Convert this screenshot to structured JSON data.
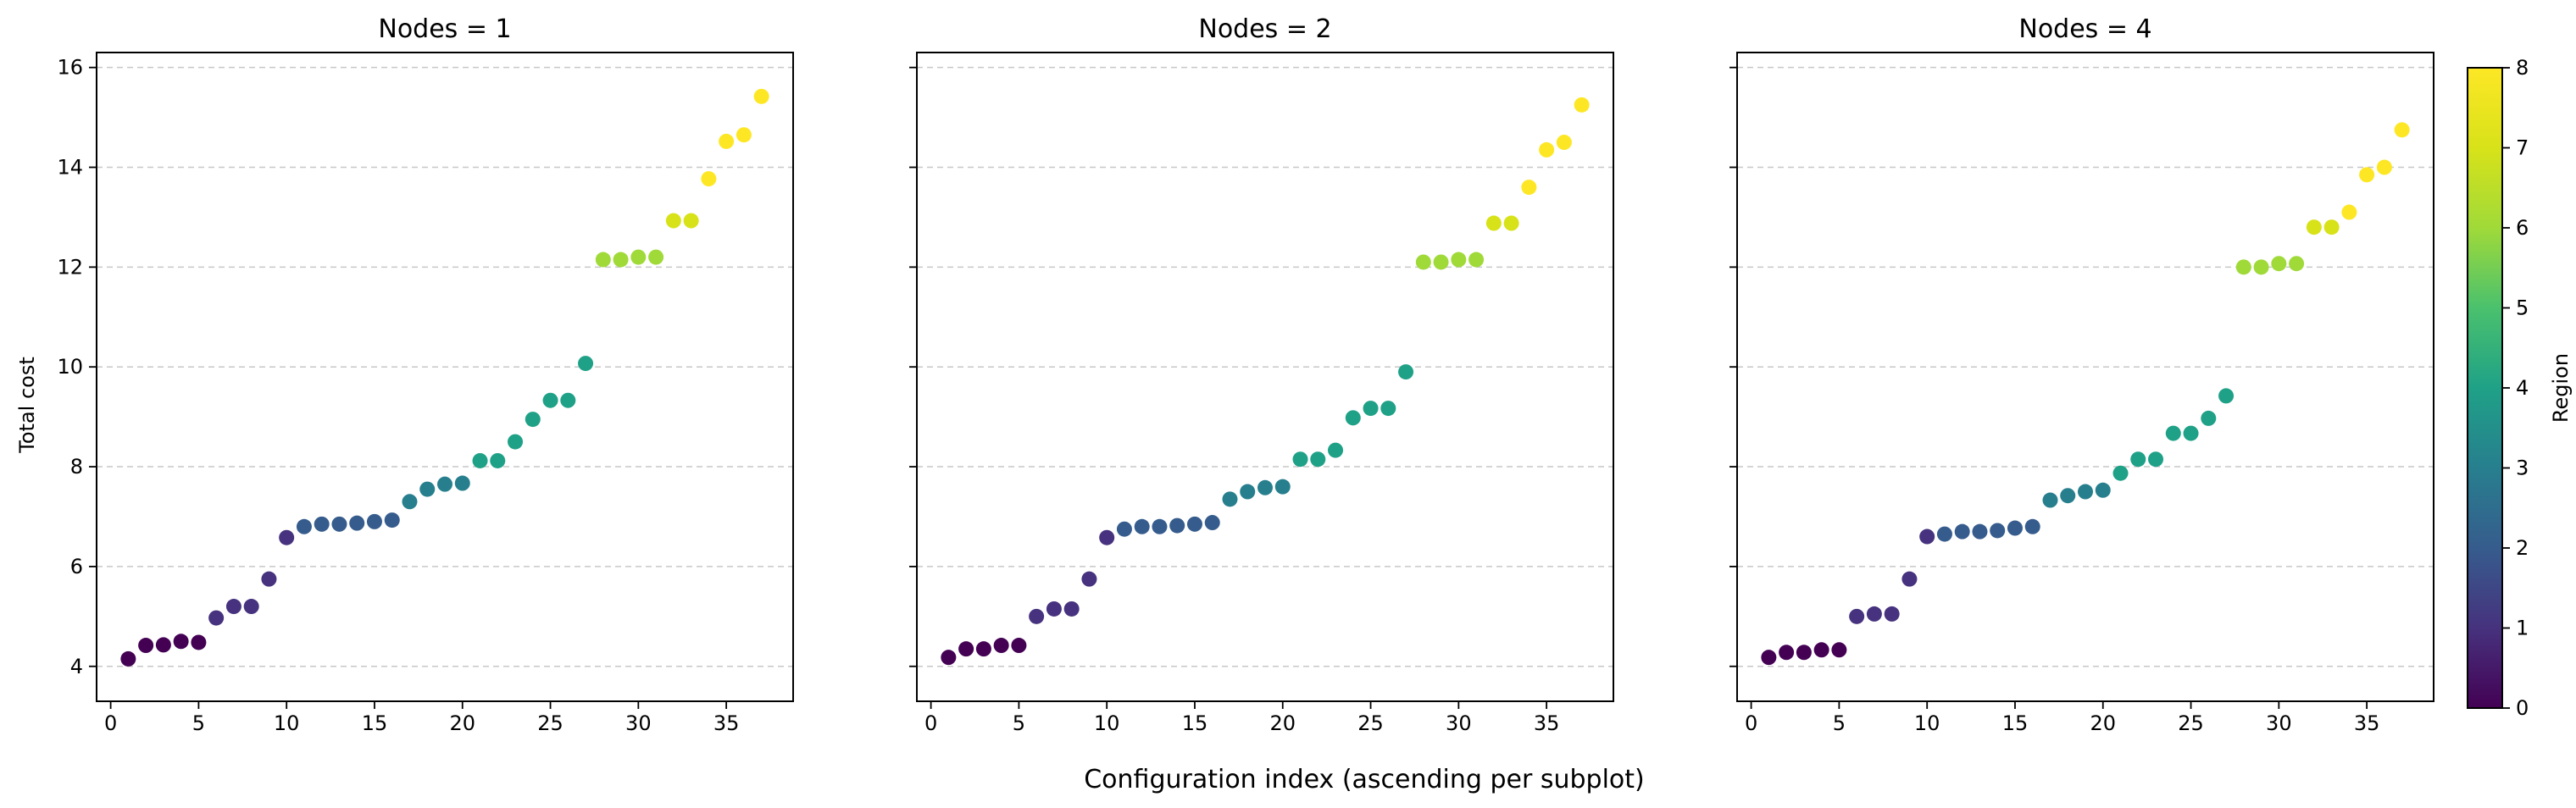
{
  "chart_data": {
    "type": "scatter",
    "xlabel": "Configuration index (ascending per subplot)",
    "ylabel": "Total cost",
    "colorbar": {
      "label": "Region",
      "min": 0,
      "max": 8,
      "ticks": [
        0,
        1,
        2,
        3,
        4,
        5,
        6,
        7,
        8
      ],
      "colormap": "viridis"
    },
    "xlim": [
      -0.8,
      38.8
    ],
    "ylim": [
      3.3,
      16.3
    ],
    "xticks": [
      0,
      5,
      10,
      15,
      20,
      25,
      30,
      35
    ],
    "yticks": [
      4,
      6,
      8,
      10,
      12,
      14,
      16
    ],
    "grid": "y-dashed",
    "subplots": [
      {
        "title": "Nodes = 1",
        "x": [
          1,
          2,
          3,
          4,
          5,
          6,
          7,
          8,
          9,
          10,
          11,
          12,
          13,
          14,
          15,
          16,
          17,
          18,
          19,
          20,
          21,
          22,
          23,
          24,
          25,
          26,
          27,
          28,
          29,
          30,
          31,
          32,
          33,
          34,
          35,
          36,
          37
        ],
        "y": [
          4.15,
          4.42,
          4.43,
          4.5,
          4.48,
          4.97,
          5.2,
          5.2,
          5.75,
          6.58,
          6.8,
          6.85,
          6.85,
          6.87,
          6.9,
          6.93,
          7.3,
          7.55,
          7.65,
          7.67,
          8.12,
          8.12,
          8.5,
          8.95,
          9.33,
          9.33,
          10.07,
          12.15,
          12.15,
          12.2,
          12.2,
          12.93,
          12.93,
          13.77,
          14.52,
          14.65,
          15.42
        ],
        "region": [
          0,
          0,
          0,
          0,
          0,
          1,
          1,
          1,
          1,
          1,
          2,
          2,
          2,
          2,
          2,
          2,
          3,
          3,
          3,
          3,
          4,
          4,
          4,
          4,
          4,
          4,
          4,
          6,
          6,
          6,
          6,
          7,
          7,
          8,
          8,
          8,
          8
        ]
      },
      {
        "title": "Nodes = 2",
        "x": [
          1,
          2,
          3,
          4,
          5,
          6,
          7,
          8,
          9,
          10,
          11,
          12,
          13,
          14,
          15,
          16,
          17,
          18,
          19,
          20,
          21,
          22,
          23,
          24,
          25,
          26,
          27,
          28,
          29,
          30,
          31,
          32,
          33,
          34,
          35,
          36,
          37
        ],
        "y": [
          4.18,
          4.35,
          4.35,
          4.42,
          4.42,
          5.0,
          5.15,
          5.15,
          5.75,
          6.58,
          6.75,
          6.8,
          6.8,
          6.82,
          6.85,
          6.88,
          7.35,
          7.5,
          7.58,
          7.6,
          8.15,
          8.15,
          8.33,
          8.98,
          9.17,
          9.17,
          9.9,
          12.1,
          12.1,
          12.15,
          12.15,
          12.88,
          12.88,
          13.6,
          14.35,
          14.5,
          15.25
        ],
        "region": [
          0,
          0,
          0,
          0,
          0,
          1,
          1,
          1,
          1,
          1,
          2,
          2,
          2,
          2,
          2,
          2,
          3,
          3,
          3,
          3,
          4,
          4,
          4,
          4,
          4,
          4,
          4,
          6,
          6,
          6,
          6,
          7,
          7,
          8,
          8,
          8,
          8
        ]
      },
      {
        "title": "Nodes = 4",
        "x": [
          1,
          2,
          3,
          4,
          5,
          6,
          7,
          8,
          9,
          10,
          11,
          12,
          13,
          14,
          15,
          16,
          17,
          18,
          19,
          20,
          21,
          22,
          23,
          24,
          25,
          26,
          27,
          28,
          29,
          30,
          31,
          32,
          33,
          34,
          35,
          36,
          37
        ],
        "y": [
          4.18,
          4.28,
          4.28,
          4.33,
          4.33,
          5.0,
          5.05,
          5.05,
          5.75,
          6.6,
          6.65,
          6.7,
          6.7,
          6.72,
          6.77,
          6.8,
          7.33,
          7.42,
          7.5,
          7.53,
          7.87,
          8.15,
          8.15,
          8.67,
          8.67,
          8.97,
          9.42,
          12.0,
          12.0,
          12.07,
          12.07,
          12.8,
          12.8,
          13.1,
          13.85,
          14.0,
          14.75
        ],
        "region": [
          0,
          0,
          0,
          0,
          0,
          1,
          1,
          1,
          1,
          1,
          2,
          2,
          2,
          2,
          2,
          2,
          3,
          3,
          3,
          3,
          4,
          4,
          4,
          4,
          4,
          4,
          4,
          6,
          6,
          6,
          6,
          7,
          7,
          8,
          8,
          8,
          8
        ]
      }
    ]
  }
}
